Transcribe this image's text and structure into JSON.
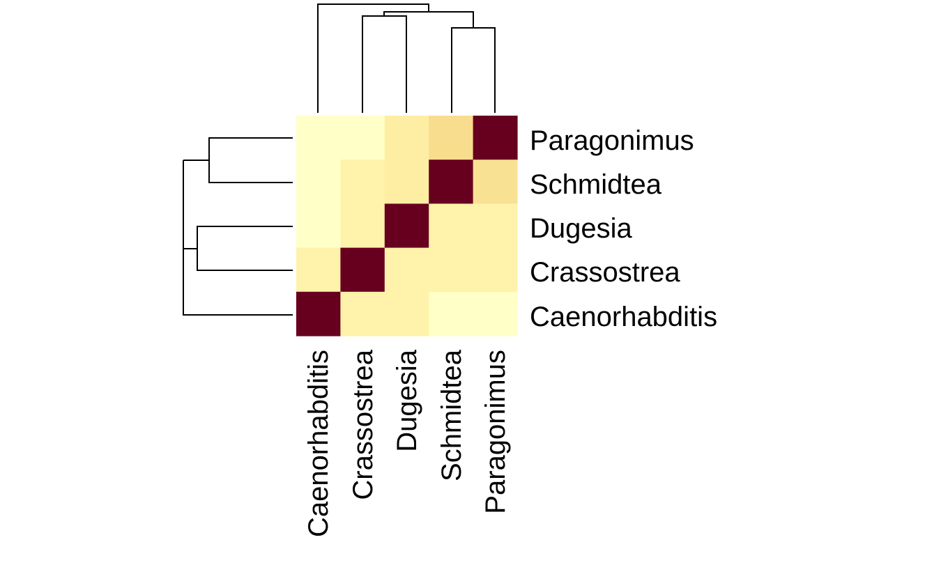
{
  "chart_data": {
    "type": "heatmap",
    "title": "",
    "xlabel": "",
    "ylabel": "",
    "columns": [
      "Caenorhabditis",
      "Crassostrea",
      "Dugesia",
      "Schmidtea",
      "Paragonimus"
    ],
    "rows_top_to_bottom": [
      "Paragonimus",
      "Schmidtea",
      "Dugesia",
      "Crassostrea",
      "Caenorhabditis"
    ],
    "values": [
      [
        0.1,
        0.1,
        0.25,
        0.45,
        1.0
      ],
      [
        0.1,
        0.2,
        0.25,
        1.0,
        0.4
      ],
      [
        0.1,
        0.2,
        1.0,
        0.2,
        0.2
      ],
      [
        0.2,
        1.0,
        0.2,
        0.2,
        0.2
      ],
      [
        1.0,
        0.2,
        0.2,
        0.1,
        0.1
      ]
    ],
    "color_scale": {
      "low": "#FFFFC8",
      "mid_low": "#FFF2AA",
      "mid": "#F8DD8E",
      "high": "#67001F"
    },
    "row_dendrogram": "((Paragonimus,Schmidtea),(Dugesia,Crassostrea)),Caenorhabditis",
    "column_dendrogram": "Caenorhabditis,(Crassostrea,Dugesia),(Schmidtea,Paragonimus)",
    "legend": "none",
    "grid": false
  }
}
